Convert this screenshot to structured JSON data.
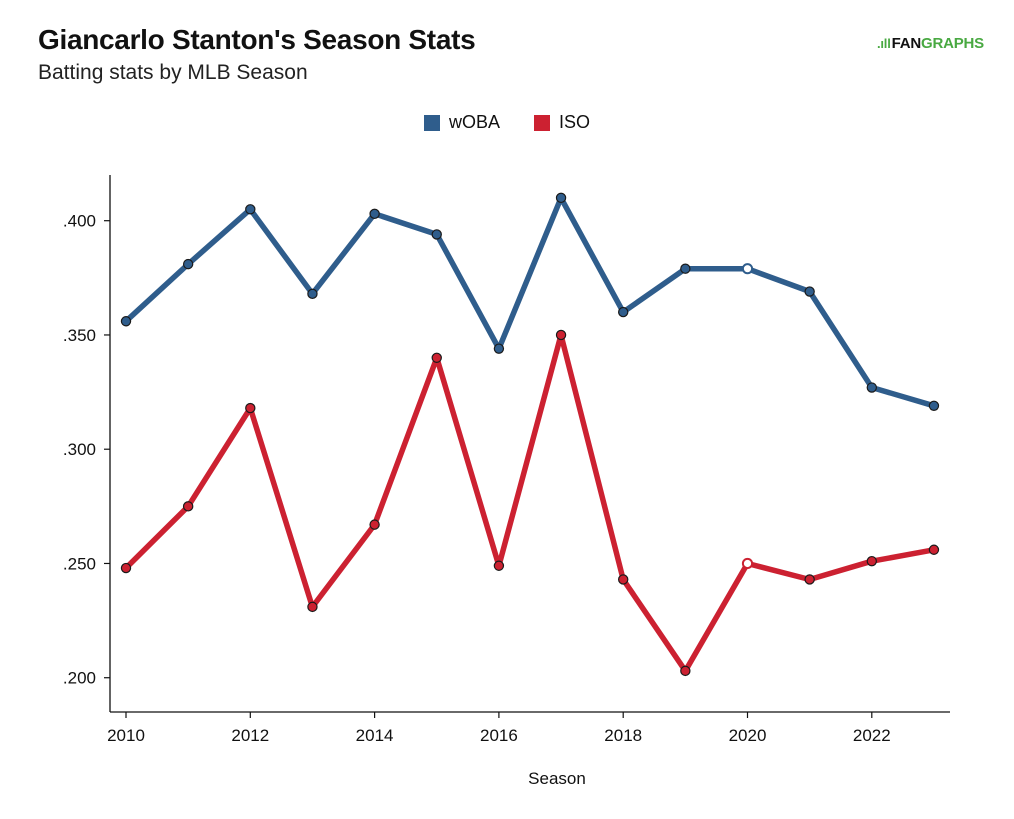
{
  "header": {
    "title": "Giancarlo Stanton's Season Stats",
    "subtitle": "Batting stats by MLB Season",
    "logo_fan": "FAN",
    "logo_graphs": "GRAPHS"
  },
  "chart_data": {
    "type": "line",
    "title": "Giancarlo Stanton's Season Stats",
    "subtitle": "Batting stats by MLB Season",
    "xlabel": "Season",
    "ylabel": "",
    "x": [
      2010,
      2011,
      2012,
      2013,
      2014,
      2015,
      2016,
      2017,
      2018,
      2019,
      2020,
      2021,
      2022,
      2023
    ],
    "xlim": [
      2010,
      2023.3
    ],
    "ylim": [
      0.185,
      0.42
    ],
    "x_ticks": [
      2010,
      2012,
      2014,
      2016,
      2018,
      2020,
      2022
    ],
    "x_tick_labels": [
      "2010",
      "2012",
      "2014",
      "2016",
      "2018",
      "2020",
      "2022"
    ],
    "y_ticks": [
      0.2,
      0.25,
      0.3,
      0.35,
      0.4
    ],
    "y_tick_labels": [
      ".200",
      ".250",
      ".300",
      ".350",
      ".400"
    ],
    "grid": false,
    "legend_position": "top-center",
    "hollow_points_x": [
      2020
    ],
    "series": [
      {
        "name": "wOBA",
        "color": "#2f5d8c",
        "values": [
          0.356,
          0.381,
          0.405,
          0.368,
          0.403,
          0.394,
          0.344,
          0.41,
          0.36,
          0.379,
          0.379,
          0.369,
          0.327,
          0.319
        ]
      },
      {
        "name": "ISO",
        "color": "#cc2131",
        "values": [
          0.248,
          0.275,
          0.318,
          0.231,
          0.267,
          0.34,
          0.249,
          0.35,
          0.243,
          0.203,
          0.25,
          0.243,
          0.251,
          0.256
        ]
      }
    ]
  }
}
